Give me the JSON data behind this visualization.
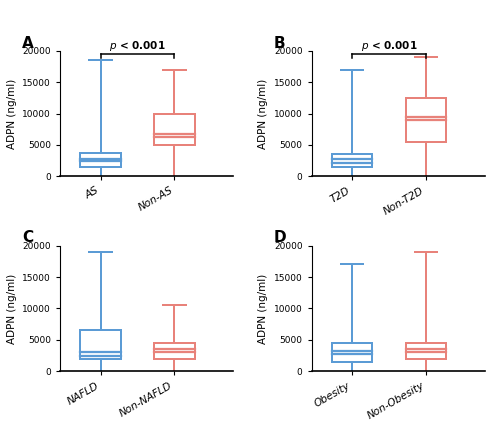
{
  "panels": [
    {
      "label": "A",
      "groups": [
        "AS",
        "Non-AS"
      ],
      "colors": [
        "#5B9BD5",
        "#E8827A"
      ],
      "boxes": [
        {
          "whisker_low": 0,
          "q1": 1500,
          "median": 2500,
          "median2": 2800,
          "q3": 3800,
          "whisker_high": 18500
        },
        {
          "whisker_low": 0,
          "q1": 5000,
          "median": 6200,
          "median2": 6800,
          "q3": 10000,
          "whisker_high": 17000
        }
      ],
      "pvalue": "$p$ < 0.001",
      "show_pvalue": true
    },
    {
      "label": "B",
      "groups": [
        "T2D",
        "Non-T2D"
      ],
      "colors": [
        "#5B9BD5",
        "#E8827A"
      ],
      "boxes": [
        {
          "whisker_low": 0,
          "q1": 1500,
          "median": 2200,
          "median2": 2700,
          "q3": 3500,
          "whisker_high": 17000
        },
        {
          "whisker_low": 0,
          "q1": 5500,
          "median": 9000,
          "median2": 9500,
          "q3": 12500,
          "whisker_high": 19000
        }
      ],
      "pvalue": "$p$ < 0.001",
      "show_pvalue": true
    },
    {
      "label": "C",
      "groups": [
        "NAFLD",
        "Non-NAFLD"
      ],
      "colors": [
        "#5B9BD5",
        "#E8827A"
      ],
      "boxes": [
        {
          "whisker_low": 0,
          "q1": 2000,
          "median": 2500,
          "median2": 3000,
          "q3": 6500,
          "whisker_high": 19000
        },
        {
          "whisker_low": 0,
          "q1": 2000,
          "median": 3000,
          "median2": 3500,
          "q3": 4500,
          "whisker_high": 10500
        }
      ],
      "pvalue": null,
      "show_pvalue": false
    },
    {
      "label": "D",
      "groups": [
        "Obesity",
        "Non-Obesity"
      ],
      "colors": [
        "#5B9BD5",
        "#E8827A"
      ],
      "boxes": [
        {
          "whisker_low": 0,
          "q1": 1500,
          "median": 2800,
          "median2": 3200,
          "q3": 4500,
          "whisker_high": 17000
        },
        {
          "whisker_low": 0,
          "q1": 2000,
          "median": 3000,
          "median2": 3500,
          "q3": 4500,
          "whisker_high": 19000
        }
      ],
      "pvalue": null,
      "show_pvalue": false
    }
  ],
  "ylim": [
    0,
    20000
  ],
  "yticks": [
    0,
    5000,
    10000,
    15000,
    20000
  ],
  "ylabel": "ADPN (ng/ml)",
  "box_width": 0.55,
  "linewidth": 1.8
}
